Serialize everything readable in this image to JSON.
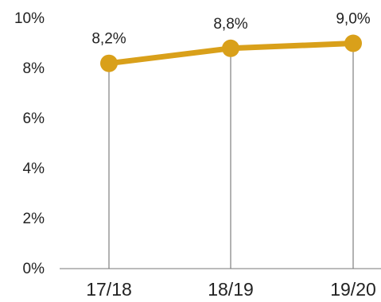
{
  "chart_data": {
    "type": "line",
    "categories": [
      "17/18",
      "18/19",
      "19/20"
    ],
    "series": [
      {
        "values": [
          8.2,
          8.8,
          9.0
        ],
        "color": "#D9A01A"
      }
    ],
    "data_labels": [
      "8,2%",
      "8,8%",
      "9,0%"
    ],
    "y_ticks": [
      0,
      2,
      4,
      6,
      8,
      10
    ],
    "y_tick_labels": [
      "0%",
      "2%",
      "4%",
      "6%",
      "8%",
      "10%"
    ],
    "ylim": [
      0,
      10
    ],
    "title": "",
    "xlabel": "",
    "ylabel": "",
    "grid": false,
    "drop_lines": true,
    "legend": "none",
    "colors": {
      "line": "#D9A01A",
      "axis": "#777777",
      "drop_line": "#666666",
      "text": "#222222"
    }
  }
}
